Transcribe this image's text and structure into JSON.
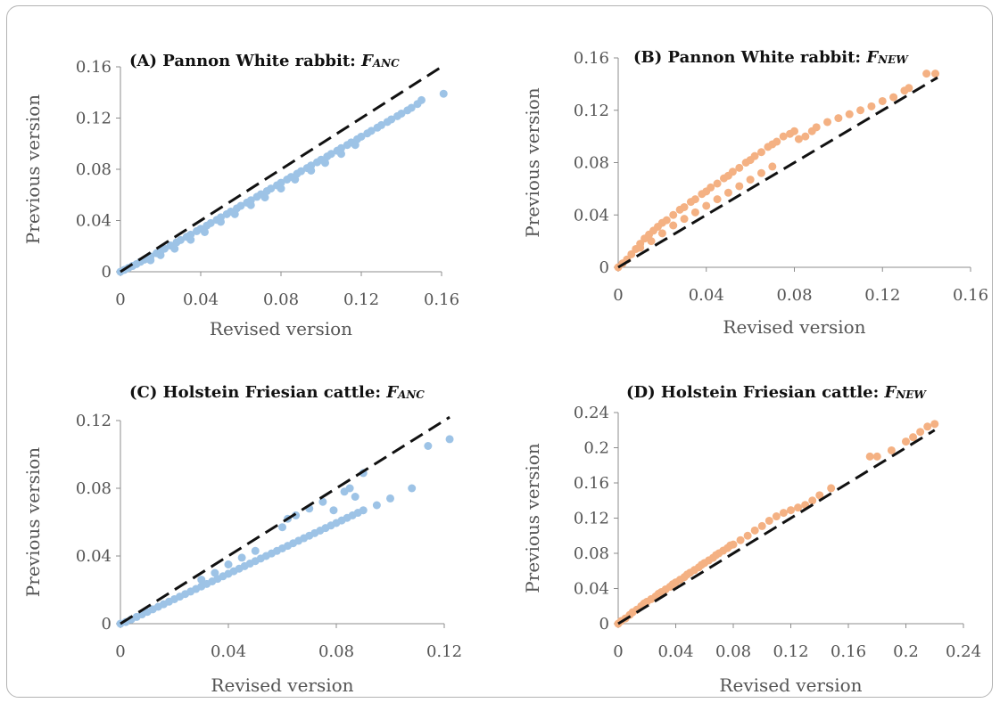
{
  "chart_data": [
    {
      "type": "scatter",
      "panel": "A",
      "title": "(A) Pannon White rabbit: ",
      "title_var": "F",
      "title_sub": "ANC",
      "xlabel": "Revised version",
      "ylabel": "Previous version",
      "xlim": [
        0,
        0.16
      ],
      "ylim": [
        0,
        0.16
      ],
      "xticks": [
        "0",
        "0.04",
        "0.08",
        "0.12",
        "0.16"
      ],
      "yticks": [
        "0",
        "0.04",
        "0.08",
        "0.12",
        "0.16"
      ],
      "marker_color": "#9dc3e6",
      "reference_line": {
        "style": "dashed",
        "color": "#111111",
        "x": [
          0,
          0.161
        ],
        "y": [
          0,
          0.161
        ]
      },
      "series": [
        {
          "x": [
            0,
            0.002,
            0.004,
            0.006,
            0.008,
            0.01,
            0.012,
            0.015,
            0.018,
            0.02,
            0.022,
            0.025,
            0.028,
            0.03,
            0.033,
            0.035,
            0.038,
            0.04,
            0.043,
            0.045,
            0.048,
            0.05,
            0.053,
            0.055,
            0.058,
            0.06,
            0.063,
            0.065,
            0.068,
            0.07,
            0.073,
            0.075,
            0.078,
            0.08,
            0.083,
            0.085,
            0.088,
            0.09,
            0.093,
            0.095,
            0.098,
            0.1,
            0.103,
            0.105,
            0.108,
            0.11,
            0.113,
            0.115,
            0.118,
            0.12,
            0.123,
            0.125,
            0.128,
            0.13,
            0.133,
            0.135,
            0.138,
            0.14,
            0.143,
            0.145,
            0.148,
            0.15,
            0.161,
            0.015,
            0.02,
            0.027,
            0.035,
            0.042,
            0.05,
            0.057,
            0.065,
            0.072,
            0.08,
            0.087,
            0.095,
            0.102,
            0.11,
            0.117
          ],
          "y": [
            0,
            0.0015,
            0.003,
            0.0045,
            0.006,
            0.0078,
            0.0095,
            0.012,
            0.0145,
            0.0162,
            0.018,
            0.0205,
            0.023,
            0.0248,
            0.0273,
            0.029,
            0.0317,
            0.0335,
            0.036,
            0.038,
            0.0405,
            0.0425,
            0.045,
            0.047,
            0.0495,
            0.0515,
            0.054,
            0.0558,
            0.0585,
            0.0605,
            0.063,
            0.065,
            0.0675,
            0.0695,
            0.072,
            0.074,
            0.0765,
            0.0785,
            0.081,
            0.083,
            0.0855,
            0.0875,
            0.09,
            0.092,
            0.0945,
            0.0965,
            0.099,
            0.101,
            0.1035,
            0.1055,
            0.108,
            0.11,
            0.1125,
            0.1145,
            0.117,
            0.119,
            0.1215,
            0.1235,
            0.126,
            0.128,
            0.131,
            0.134,
            0.139,
            0.009,
            0.013,
            0.018,
            0.025,
            0.031,
            0.039,
            0.045,
            0.052,
            0.058,
            0.065,
            0.072,
            0.079,
            0.085,
            0.092,
            0.099
          ]
        }
      ]
    },
    {
      "type": "scatter",
      "panel": "B",
      "title": "(B) Pannon White rabbit: ",
      "title_var": "F",
      "title_sub": "NEW",
      "xlabel": "Revised version",
      "ylabel": "Previous version",
      "xlim": [
        0,
        0.16
      ],
      "ylim": [
        0,
        0.16
      ],
      "xticks": [
        "0",
        "0.04",
        "0.08",
        "0.12",
        "0.16"
      ],
      "yticks": [
        "0",
        "0.04",
        "0.08",
        "0.12",
        "0.16"
      ],
      "marker_color": "#f4b183",
      "reference_line": {
        "style": "dashed",
        "color": "#111111",
        "x": [
          0,
          0.145
        ],
        "y": [
          0,
          0.145
        ]
      },
      "series": [
        {
          "x": [
            0,
            0.002,
            0.004,
            0.006,
            0.008,
            0.01,
            0.012,
            0.014,
            0.016,
            0.018,
            0.02,
            0.022,
            0.025,
            0.028,
            0.03,
            0.033,
            0.035,
            0.038,
            0.04,
            0.042,
            0.045,
            0.048,
            0.05,
            0.052,
            0.055,
            0.058,
            0.06,
            0.062,
            0.065,
            0.068,
            0.07,
            0.072,
            0.075,
            0.078,
            0.08,
            0.082,
            0.085,
            0.088,
            0.09,
            0.095,
            0.1,
            0.105,
            0.11,
            0.115,
            0.12,
            0.125,
            0.13,
            0.132,
            0.14,
            0.144,
            0.01,
            0.015,
            0.02,
            0.025,
            0.03,
            0.035,
            0.04,
            0.045,
            0.05,
            0.055,
            0.06,
            0.065,
            0.07
          ],
          "y": [
            0,
            0.003,
            0.006,
            0.01,
            0.014,
            0.018,
            0.022,
            0.025,
            0.028,
            0.031,
            0.034,
            0.036,
            0.04,
            0.044,
            0.046,
            0.05,
            0.052,
            0.056,
            0.058,
            0.061,
            0.064,
            0.068,
            0.07,
            0.073,
            0.076,
            0.08,
            0.082,
            0.085,
            0.088,
            0.092,
            0.094,
            0.096,
            0.1,
            0.102,
            0.104,
            0.098,
            0.1,
            0.104,
            0.107,
            0.111,
            0.114,
            0.117,
            0.12,
            0.123,
            0.127,
            0.13,
            0.135,
            0.137,
            0.148,
            0.148,
            0.015,
            0.02,
            0.026,
            0.032,
            0.037,
            0.042,
            0.047,
            0.052,
            0.057,
            0.062,
            0.067,
            0.072,
            0.077
          ]
        }
      ]
    },
    {
      "type": "scatter",
      "panel": "C",
      "title": "(C) Holstein Friesian cattle: ",
      "title_var": "F",
      "title_sub": "ANC",
      "xlabel": "Revised version",
      "ylabel": "Previous version",
      "xlim": [
        0,
        0.12
      ],
      "ylim": [
        0,
        0.12
      ],
      "xticks": [
        "0",
        "0.04",
        "0.08",
        "0.12"
      ],
      "yticks": [
        "0",
        "0.04",
        "0.08",
        "0.12"
      ],
      "marker_color": "#9dc3e6",
      "reference_line": {
        "style": "dashed",
        "color": "#111111",
        "x": [
          0,
          0.122
        ],
        "y": [
          0,
          0.122
        ]
      },
      "series": [
        {
          "x": [
            0,
            0.002,
            0.004,
            0.006,
            0.008,
            0.01,
            0.012,
            0.014,
            0.016,
            0.018,
            0.02,
            0.022,
            0.024,
            0.026,
            0.028,
            0.03,
            0.032,
            0.034,
            0.036,
            0.038,
            0.04,
            0.042,
            0.044,
            0.046,
            0.048,
            0.05,
            0.052,
            0.054,
            0.056,
            0.058,
            0.06,
            0.062,
            0.064,
            0.066,
            0.068,
            0.07,
            0.072,
            0.074,
            0.076,
            0.078,
            0.08,
            0.082,
            0.084,
            0.086,
            0.088,
            0.09,
            0.095,
            0.1,
            0.108,
            0.114,
            0.122,
            0.06,
            0.062,
            0.065,
            0.07,
            0.075,
            0.079,
            0.083,
            0.085,
            0.087,
            0.09,
            0.03,
            0.035,
            0.04,
            0.045,
            0.05
          ],
          "y": [
            0,
            0.001,
            0.0025,
            0.004,
            0.0055,
            0.007,
            0.0085,
            0.01,
            0.0115,
            0.013,
            0.0145,
            0.016,
            0.0175,
            0.019,
            0.0205,
            0.022,
            0.0235,
            0.025,
            0.0265,
            0.028,
            0.0295,
            0.031,
            0.0325,
            0.034,
            0.0355,
            0.037,
            0.0385,
            0.04,
            0.0415,
            0.043,
            0.0445,
            0.046,
            0.0475,
            0.049,
            0.0505,
            0.052,
            0.0535,
            0.055,
            0.0565,
            0.058,
            0.0595,
            0.061,
            0.0625,
            0.064,
            0.0655,
            0.067,
            0.07,
            0.074,
            0.08,
            0.105,
            0.109,
            0.057,
            0.062,
            0.064,
            0.068,
            0.072,
            0.067,
            0.078,
            0.08,
            0.075,
            0.089,
            0.026,
            0.03,
            0.035,
            0.039,
            0.043
          ]
        }
      ]
    },
    {
      "type": "scatter",
      "panel": "D",
      "title": "(D) Holstein Friesian cattle: ",
      "title_var": "F",
      "title_sub": "NEW",
      "xlabel": "Revised version",
      "ylabel": "Previous version",
      "xlim": [
        0,
        0.24
      ],
      "ylim": [
        0,
        0.24
      ],
      "xticks": [
        "0",
        "0.04",
        "0.08",
        "0.12",
        "0.16",
        "0.2",
        "0.24"
      ],
      "yticks": [
        "0",
        "0.04",
        "0.08",
        "0.12",
        "0.16",
        "0.2",
        "0.24"
      ],
      "marker_color": "#f4b183",
      "reference_line": {
        "style": "dashed",
        "color": "#111111",
        "x": [
          0,
          0.22
        ],
        "y": [
          0,
          0.22
        ]
      },
      "series": [
        {
          "x": [
            0,
            0.002,
            0.005,
            0.008,
            0.01,
            0.013,
            0.016,
            0.018,
            0.02,
            0.023,
            0.026,
            0.028,
            0.03,
            0.033,
            0.036,
            0.038,
            0.04,
            0.043,
            0.046,
            0.048,
            0.05,
            0.053,
            0.056,
            0.058,
            0.06,
            0.063,
            0.066,
            0.068,
            0.07,
            0.073,
            0.076,
            0.078,
            0.08,
            0.085,
            0.09,
            0.095,
            0.1,
            0.105,
            0.11,
            0.115,
            0.12,
            0.125,
            0.13,
            0.135,
            0.14,
            0.148,
            0.175,
            0.18,
            0.19,
            0.2,
            0.205,
            0.21,
            0.215,
            0.22
          ],
          "y": [
            0,
            0.003,
            0.006,
            0.01,
            0.013,
            0.016,
            0.02,
            0.023,
            0.025,
            0.028,
            0.031,
            0.034,
            0.036,
            0.039,
            0.042,
            0.045,
            0.047,
            0.05,
            0.053,
            0.056,
            0.058,
            0.061,
            0.064,
            0.067,
            0.069,
            0.072,
            0.075,
            0.078,
            0.08,
            0.083,
            0.086,
            0.089,
            0.09,
            0.095,
            0.1,
            0.106,
            0.111,
            0.117,
            0.122,
            0.126,
            0.129,
            0.132,
            0.135,
            0.14,
            0.146,
            0.154,
            0.19,
            0.19,
            0.197,
            0.207,
            0.212,
            0.218,
            0.224,
            0.227
          ]
        }
      ]
    }
  ]
}
